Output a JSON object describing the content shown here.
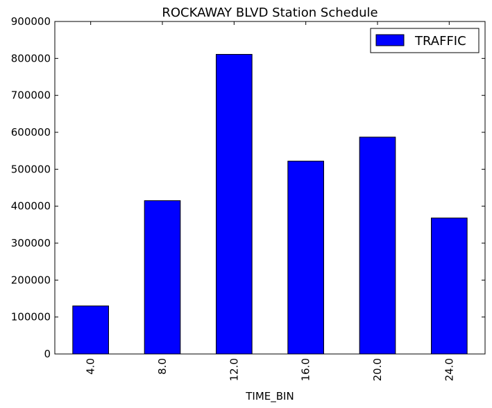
{
  "chart_data": {
    "type": "bar",
    "title": "ROCKAWAY BLVD Station Schedule",
    "xlabel": "TIME_BIN",
    "ylabel": "",
    "categories": [
      "4.0",
      "8.0",
      "12.0",
      "16.0",
      "20.0",
      "24.0"
    ],
    "series": [
      {
        "name": "TRAFFIC",
        "color": "#0000ff",
        "values": [
          130000,
          415000,
          811000,
          522000,
          587000,
          368000
        ]
      }
    ],
    "ylim": [
      0,
      900000
    ],
    "yticks": [
      0,
      100000,
      200000,
      300000,
      400000,
      500000,
      600000,
      700000,
      800000,
      900000
    ],
    "ytick_labels": [
      "0",
      "100000",
      "200000",
      "300000",
      "400000",
      "500000",
      "600000",
      "700000",
      "800000",
      "900000"
    ],
    "grid": false,
    "legend": {
      "position": "top-right"
    }
  }
}
